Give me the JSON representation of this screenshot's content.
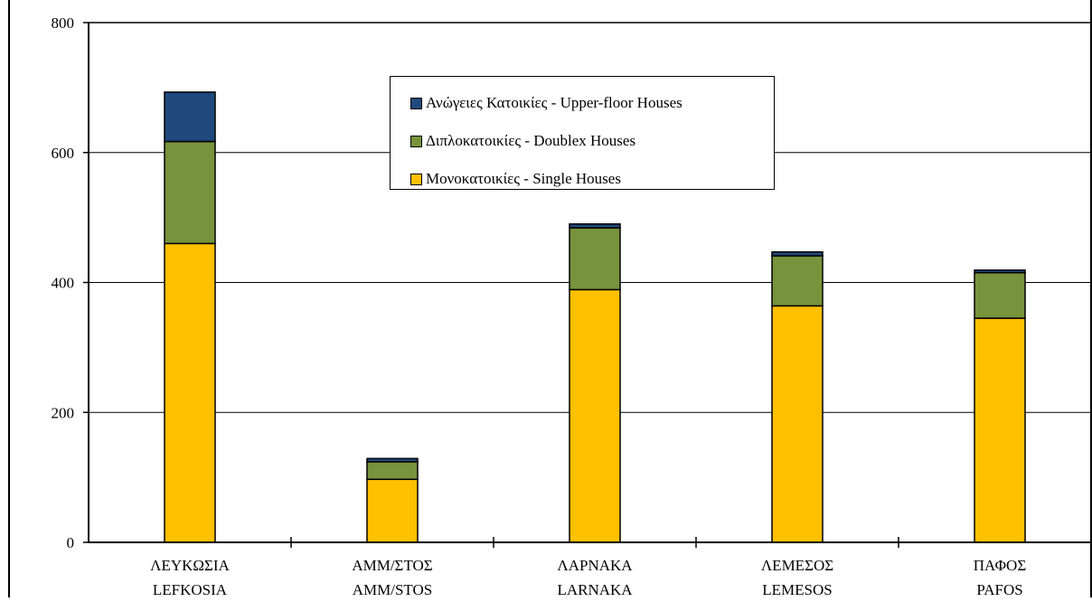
{
  "chart_data": {
    "type": "bar",
    "stacked": true,
    "categories": [
      [
        "ΛΕΥΚΩΣΙΑ",
        "LEFKOSIA"
      ],
      [
        "ΑΜΜ/ΣΤΟΣ",
        "AMM/STOS"
      ],
      [
        "ΛΑΡΝΑΚΑ",
        "LARNAKA"
      ],
      [
        "ΛΕΜΕΣΟΣ",
        "LEMESOS"
      ],
      [
        "ΠΑΦΟΣ",
        "PAFOS"
      ]
    ],
    "series": [
      {
        "name": "Μονοκατοικίες - Single Houses",
        "color": "#ffc000",
        "values": [
          460,
          97,
          389,
          364,
          345
        ]
      },
      {
        "name": "Διπλοκατοικίες - Doublex Houses",
        "color": "#77933c",
        "values": [
          157,
          27,
          95,
          77,
          70
        ]
      },
      {
        "name": "Ανώγειες Κατοικίες - Upper-floor Houses",
        "color": "#1f497d",
        "values": [
          76,
          5,
          6,
          6,
          4
        ]
      }
    ],
    "ylim": [
      0,
      800
    ],
    "yticks": [
      0,
      200,
      400,
      600,
      800
    ],
    "grid": true,
    "legend_position": "top-center"
  },
  "legend": {
    "items": [
      {
        "label": "Ανώγειες Κατοικίες - Upper-floor Houses",
        "color": "#1f497d"
      },
      {
        "label": "Διπλοκατοικίες - Doublex Houses",
        "color": "#77933c"
      },
      {
        "label": "Μονοκατοικίες - Single Houses",
        "color": "#ffc000"
      }
    ]
  }
}
